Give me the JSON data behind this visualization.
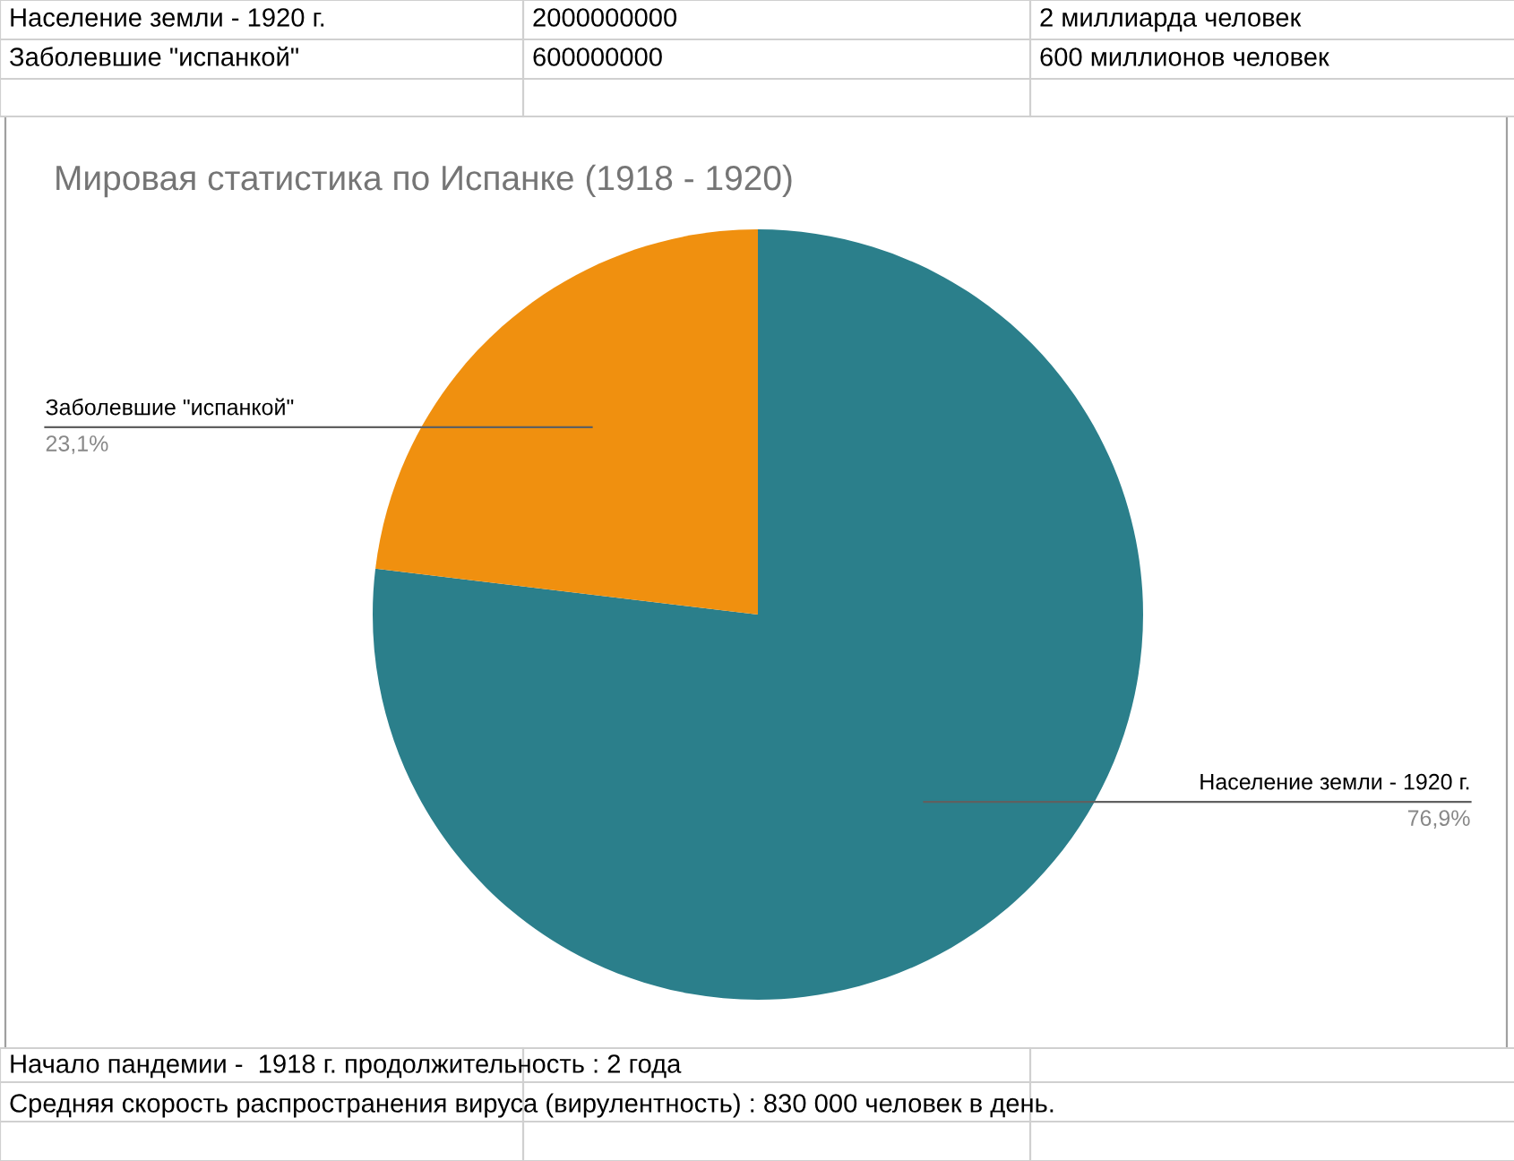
{
  "chart_data": {
    "type": "pie",
    "title": "Мировая статистика по Испанке (1918 - 1920)",
    "categories": [
      "Население земли - 1920 г.",
      "Заболевшие \"испанкой\""
    ],
    "values": [
      76.9,
      23.1
    ],
    "colors": [
      "#2b7f8b",
      "#f0900f"
    ],
    "value_labels": [
      "76,9%",
      "23,1%"
    ],
    "legend": false,
    "annotations": [
      "Население земли - 1920 г.",
      "2000000000",
      "2 миллиарда человек",
      "Заболевшие \"испанкой\"",
      "600000000",
      "600 миллионов человек",
      "Начало пандемии -  1918 г. продолжительность : 2 года",
      "Средняя скорость распространения вируса (вирулентность) : 830 000 человек в день."
    ]
  }
}
